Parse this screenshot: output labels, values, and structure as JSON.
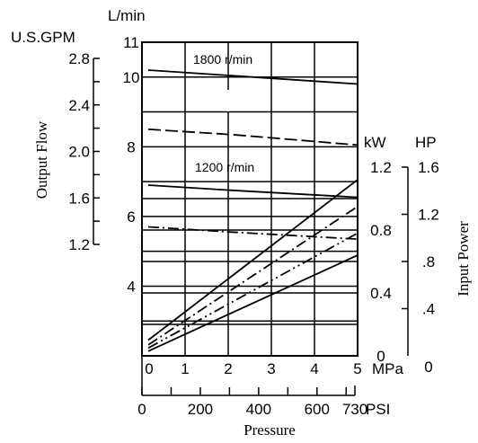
{
  "chart_data": {
    "type": "line",
    "xlabel": "Pressure",
    "x_units_primary": "MPa",
    "x_units_secondary": "PSI",
    "x_ticks_mpa": [
      "0",
      "1",
      "2",
      "3",
      "4",
      "5"
    ],
    "x_ticks_psi": [
      "0",
      "200",
      "400",
      "600",
      "730"
    ],
    "psi_tick_values": [
      0,
      200,
      400,
      600,
      730
    ],
    "xlim_mpa": [
      0,
      5
    ],
    "flow_axis": {
      "label": "Output Flow",
      "units_metric": "L/min",
      "units_us": "U.S.GPM",
      "ticks_lmin": [
        "4",
        "6",
        "8",
        "10",
        "11"
      ],
      "ticks_gpm": [
        "1.2",
        "1.6",
        "2.0",
        "2.4",
        "2.8"
      ],
      "gpm_tick_values": [
        1.2,
        1.6,
        2.0,
        2.4,
        2.8
      ],
      "ylim_lmin": [
        2,
        11
      ]
    },
    "power_axis": {
      "label": "Input Power",
      "units_kw": "kW",
      "units_hp": "HP",
      "ticks_kw": [
        "0",
        "0.4",
        "0.8",
        "1.2"
      ],
      "ticks_hp": [
        "0",
        ".4",
        ".8",
        "1.2",
        "1.6"
      ],
      "kw_tick_values": [
        0,
        0.4,
        0.8,
        1.2
      ],
      "hp_tick_values": [
        0,
        0.4,
        0.8,
        1.2,
        1.6
      ],
      "ylim_kw": [
        0,
        1.2
      ]
    },
    "annotations": [
      "1800 r/min",
      "1200 r/min"
    ],
    "flow_series": [
      {
        "x": [
          0,
          5
        ],
        "y": [
          10.2,
          9.8
        ],
        "style": "solid"
      },
      {
        "x": [
          0,
          2,
          3,
          4,
          5
        ],
        "y": [
          8.5,
          8.35,
          8.25,
          8.15,
          8.05
        ],
        "style": "long-dash"
      },
      {
        "x": [
          0,
          2,
          5
        ],
        "y": [
          6.9,
          6.75,
          6.55
        ],
        "style": "solid"
      },
      {
        "x": [
          0,
          2,
          5
        ],
        "y": [
          5.7,
          5.55,
          5.35
        ],
        "style": "dash-dot"
      }
    ],
    "power_series": [
      {
        "x": [
          0,
          5
        ],
        "y": [
          0.1,
          1.12
        ],
        "style": "solid"
      },
      {
        "x": [
          0,
          5
        ],
        "y": [
          0.07,
          0.95
        ],
        "style": "dash-dot"
      },
      {
        "x": [
          0,
          5
        ],
        "y": [
          0.05,
          0.78
        ],
        "style": "dash-dot-dot"
      },
      {
        "x": [
          0,
          5
        ],
        "y": [
          0.03,
          0.64
        ],
        "style": "solid"
      }
    ]
  }
}
